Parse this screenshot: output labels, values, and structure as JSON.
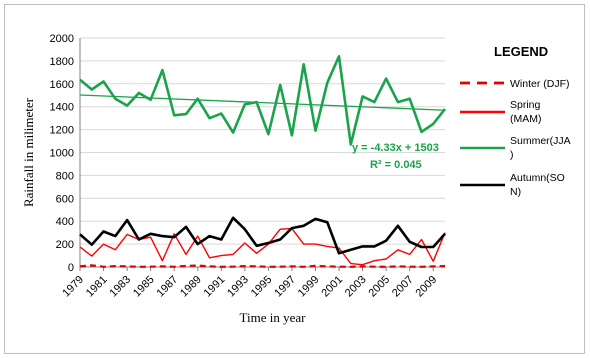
{
  "chart_data": {
    "type": "line",
    "xlabel": "Time in year",
    "ylabel": "Rainfall in milimeter",
    "ylim": [
      0,
      2000
    ],
    "xlim": [
      1979,
      2010
    ],
    "y_ticks": [
      "0",
      "200",
      "400",
      "600",
      "800",
      "1000",
      "1200",
      "1400",
      "1600",
      "1800",
      "2000"
    ],
    "x_ticks": [
      "1979",
      "1981",
      "1983",
      "1985",
      "1987",
      "1989",
      "1991",
      "1993",
      "1995",
      "1997",
      "1999",
      "2001",
      "2003",
      "2005",
      "2007",
      "2009"
    ],
    "grid": "horizontal",
    "legend": {
      "title": "LEGEND",
      "placement": "right",
      "entries": [
        {
          "label_lines": [
            "Winter (DJF)"
          ]
        },
        {
          "label_lines": [
            "Spring",
            "(MAM)"
          ]
        },
        {
          "label_lines": [
            "Summer(JJA",
            ")"
          ]
        },
        {
          "label_lines": [
            "Autumn(SO",
            "N)"
          ]
        }
      ]
    },
    "x": [
      1979,
      1980,
      1981,
      1982,
      1983,
      1984,
      1985,
      1986,
      1987,
      1988,
      1989,
      1990,
      1991,
      1992,
      1993,
      1994,
      1995,
      1996,
      1997,
      1998,
      1999,
      2000,
      2001,
      2002,
      2003,
      2004,
      2005,
      2006,
      2007,
      2008,
      2009,
      2010
    ],
    "series": [
      {
        "name": "Winter (DJF)",
        "color": "#e00000",
        "dash": true,
        "values": [
          5,
          15,
          2,
          8,
          5,
          2,
          3,
          5,
          2,
          10,
          12,
          5,
          2,
          3,
          8,
          5,
          2,
          3,
          5,
          2,
          10,
          5,
          3,
          2,
          5,
          3,
          2,
          5,
          3,
          2,
          5,
          8
        ]
      },
      {
        "name": "Spring (MAM)",
        "color": "#ff0000",
        "dash": false,
        "values": [
          175,
          95,
          200,
          150,
          285,
          240,
          260,
          55,
          290,
          110,
          270,
          80,
          100,
          110,
          210,
          120,
          200,
          330,
          335,
          200,
          200,
          180,
          165,
          30,
          20,
          55,
          70,
          150,
          110,
          240,
          50,
          300
        ]
      },
      {
        "name": "Summer(JJA)",
        "color": "#1aa34a",
        "dash": false,
        "values": [
          1635,
          1550,
          1620,
          1470,
          1410,
          1520,
          1460,
          1720,
          1325,
          1335,
          1470,
          1300,
          1340,
          1175,
          1420,
          1440,
          1160,
          1590,
          1150,
          1770,
          1190,
          1610,
          1840,
          1070,
          1490,
          1440,
          1645,
          1440,
          1470,
          1180,
          1250,
          1380
        ]
      },
      {
        "name": "Autumn(SON)",
        "color": "#000000",
        "dash": false,
        "values": [
          285,
          195,
          310,
          270,
          410,
          240,
          290,
          270,
          260,
          350,
          200,
          270,
          240,
          430,
          330,
          185,
          210,
          240,
          340,
          360,
          420,
          390,
          120,
          150,
          180,
          180,
          230,
          360,
          220,
          175,
          175,
          290
        ]
      }
    ],
    "trendline": {
      "series": "Summer(JJA)",
      "equation": "y = -4.33x + 1503",
      "r2": "R² = 0.045",
      "start": 1502,
      "end": 1369
    }
  }
}
